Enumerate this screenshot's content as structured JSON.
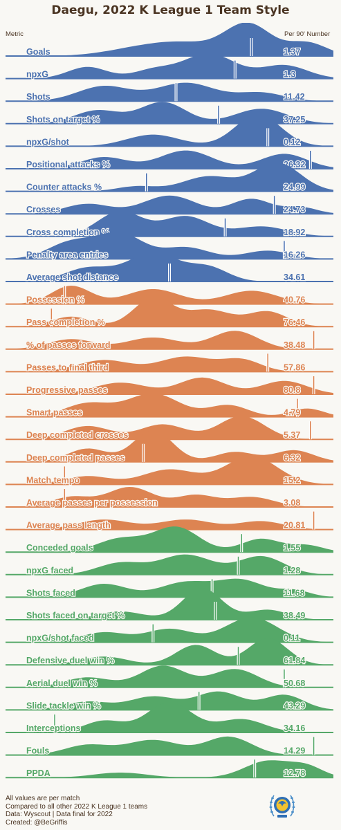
{
  "title": "Daegu, 2022 K League 1 Team Style",
  "header": {
    "left": "Metric",
    "right": "Per 90' Number"
  },
  "colors": {
    "attack": "#4c72b0",
    "possession": "#dd8452",
    "defense": "#55a868",
    "background": "#f9f8f4",
    "text": "#4a3422",
    "marker": "#ffffff"
  },
  "footer": {
    "lines": [
      "All values are per match",
      "Compared to all other 2022 K League 1 teams",
      "Data: Wyscout | Data final for 2022",
      "Created: @BeGriffis"
    ]
  },
  "logo": "daegu-fc-crest-icon",
  "chart_data": {
    "type": "ridgeline",
    "note_axis": "each row shows the distribution of the metric across league teams; marker shows Daegu's value",
    "groups": [
      "attack",
      "possession",
      "defense"
    ],
    "rows": [
      {
        "metric": "Goals",
        "value": "1.37",
        "group": "attack",
        "marker": 0.75,
        "peaks": [
          [
            0.4,
            0.2,
            0.1
          ],
          [
            0.55,
            0.35,
            0.1
          ],
          [
            0.74,
            0.95,
            0.07
          ],
          [
            0.92,
            0.4,
            0.06
          ]
        ]
      },
      {
        "metric": "npxG",
        "value": "1.3",
        "group": "attack",
        "marker": 0.7,
        "peaks": [
          [
            0.25,
            0.35,
            0.06
          ],
          [
            0.45,
            0.25,
            0.06
          ],
          [
            0.62,
            0.75,
            0.08
          ],
          [
            0.85,
            0.4,
            0.07
          ]
        ]
      },
      {
        "metric": "Shots",
        "value": "11.42",
        "group": "attack",
        "marker": 0.52,
        "peaks": [
          [
            0.3,
            0.45,
            0.08
          ],
          [
            0.55,
            0.55,
            0.09
          ],
          [
            0.78,
            0.25,
            0.07
          ]
        ]
      },
      {
        "metric": "Shots on target %",
        "value": "37.25",
        "group": "attack",
        "marker": 0.65,
        "peaks": [
          [
            0.28,
            0.4,
            0.07
          ],
          [
            0.48,
            0.65,
            0.07
          ],
          [
            0.78,
            0.45,
            0.08
          ]
        ]
      },
      {
        "metric": "npxG/shot",
        "value": "0.12",
        "group": "attack",
        "marker": 0.8,
        "peaks": [
          [
            0.45,
            0.35,
            0.08
          ],
          [
            0.77,
            0.95,
            0.07
          ]
        ]
      },
      {
        "metric": "Positional attacks %",
        "value": "26.32",
        "group": "attack",
        "marker": 0.93,
        "peaks": [
          [
            0.3,
            0.35,
            0.07
          ],
          [
            0.55,
            0.55,
            0.08
          ],
          [
            0.85,
            0.45,
            0.07
          ]
        ]
      },
      {
        "metric": "Counter attacks %",
        "value": "24.99",
        "group": "attack",
        "marker": 0.43,
        "peaks": [
          [
            0.4,
            0.15,
            0.06
          ],
          [
            0.62,
            0.45,
            0.08
          ],
          [
            0.83,
            0.85,
            0.07
          ]
        ]
      },
      {
        "metric": "Crosses",
        "value": "24.73",
        "group": "attack",
        "marker": 0.82,
        "peaks": [
          [
            0.25,
            0.3,
            0.07
          ],
          [
            0.5,
            0.55,
            0.08
          ],
          [
            0.75,
            0.45,
            0.06
          ],
          [
            0.9,
            0.2,
            0.05
          ]
        ]
      },
      {
        "metric": "Cross completion %",
        "value": "18.92",
        "group": "attack",
        "marker": 0.67,
        "peaks": [
          [
            0.35,
            0.75,
            0.07
          ],
          [
            0.55,
            0.6,
            0.07
          ],
          [
            0.78,
            0.3,
            0.08
          ]
        ]
      },
      {
        "metric": "Penalty area entries",
        "value": "16.26",
        "group": "attack",
        "marker": 0.85,
        "peaks": [
          [
            0.2,
            0.5,
            0.07
          ],
          [
            0.35,
            0.75,
            0.07
          ],
          [
            0.55,
            0.35,
            0.07
          ],
          [
            0.8,
            0.25,
            0.07
          ]
        ]
      },
      {
        "metric": "Average shot distance",
        "value": "34.61",
        "group": "attack",
        "marker": 0.5,
        "peaks": [
          [
            0.25,
            0.4,
            0.07
          ],
          [
            0.45,
            0.85,
            0.08
          ],
          [
            0.62,
            0.4,
            0.06
          ]
        ]
      },
      {
        "metric": "Possession %",
        "value": "40.76",
        "group": "possession",
        "marker": 0.18,
        "peaks": [
          [
            0.2,
            0.55,
            0.06
          ],
          [
            0.45,
            0.45,
            0.08
          ],
          [
            0.75,
            0.4,
            0.08
          ]
        ]
      },
      {
        "metric": "Pass completion %",
        "value": "76.46",
        "group": "possession",
        "marker": 0.14,
        "peaks": [
          [
            0.2,
            0.3,
            0.06
          ],
          [
            0.45,
            0.85,
            0.06
          ],
          [
            0.62,
            0.5,
            0.07
          ],
          [
            0.8,
            0.45,
            0.06
          ]
        ]
      },
      {
        "metric": "% of passes forward",
        "value": "38.48",
        "group": "possession",
        "marker": 0.94,
        "peaks": [
          [
            0.2,
            0.3,
            0.07
          ],
          [
            0.45,
            0.35,
            0.08
          ],
          [
            0.7,
            0.55,
            0.07
          ]
        ]
      },
      {
        "metric": "Passes to final third",
        "value": "57.86",
        "group": "possession",
        "marker": 0.8,
        "peaks": [
          [
            0.3,
            0.35,
            0.08
          ],
          [
            0.55,
            0.45,
            0.08
          ],
          [
            0.72,
            0.35,
            0.06
          ]
        ]
      },
      {
        "metric": "Progressive passes",
        "value": "80.8",
        "group": "possession",
        "marker": 0.94,
        "peaks": [
          [
            0.35,
            0.35,
            0.08
          ],
          [
            0.6,
            0.5,
            0.07
          ],
          [
            0.85,
            0.4,
            0.07
          ]
        ]
      },
      {
        "metric": "Smart passes",
        "value": "4.79",
        "group": "possession",
        "marker": 0.89,
        "peaks": [
          [
            0.25,
            0.4,
            0.07
          ],
          [
            0.45,
            0.7,
            0.08
          ],
          [
            0.68,
            0.35,
            0.06
          ],
          [
            0.92,
            0.25,
            0.05
          ]
        ]
      },
      {
        "metric": "Deep completed crosses",
        "value": "5.37",
        "group": "possession",
        "marker": 0.93,
        "peaks": [
          [
            0.25,
            0.4,
            0.07
          ],
          [
            0.48,
            0.45,
            0.07
          ],
          [
            0.72,
            0.7,
            0.07
          ]
        ]
      },
      {
        "metric": "Deep completed passes",
        "value": "6.32",
        "group": "possession",
        "marker": 0.42,
        "peaks": [
          [
            0.25,
            0.4,
            0.06
          ],
          [
            0.45,
            0.95,
            0.06
          ],
          [
            0.7,
            0.3,
            0.06
          ],
          [
            0.88,
            0.35,
            0.06
          ]
        ]
      },
      {
        "metric": "Match tempo",
        "value": "15.2",
        "group": "possession",
        "marker": 0.18,
        "peaks": [
          [
            0.25,
            0.25,
            0.07
          ],
          [
            0.5,
            0.45,
            0.08
          ],
          [
            0.75,
            0.85,
            0.08
          ]
        ]
      },
      {
        "metric": "Average passes per possession",
        "value": "3.08",
        "group": "possession",
        "marker": 0.18,
        "peaks": [
          [
            0.2,
            0.3,
            0.06
          ],
          [
            0.38,
            0.6,
            0.07
          ],
          [
            0.58,
            0.35,
            0.06
          ],
          [
            0.75,
            0.3,
            0.07
          ]
        ]
      },
      {
        "metric": "Average pass length",
        "value": "20.81",
        "group": "possession",
        "marker": 0.94,
        "peaks": [
          [
            0.3,
            0.3,
            0.08
          ],
          [
            0.55,
            0.3,
            0.08
          ],
          [
            0.78,
            0.25,
            0.07
          ]
        ]
      },
      {
        "metric": "Conceded goals",
        "value": "1.55",
        "group": "defense",
        "marker": 0.72,
        "peaks": [
          [
            0.35,
            0.4,
            0.07
          ],
          [
            0.52,
            0.75,
            0.07
          ],
          [
            0.78,
            0.4,
            0.06
          ],
          [
            0.92,
            0.2,
            0.05
          ]
        ]
      },
      {
        "metric": "npxG faced",
        "value": "1.28",
        "group": "defense",
        "marker": 0.71,
        "peaks": [
          [
            0.35,
            0.35,
            0.07
          ],
          [
            0.55,
            0.6,
            0.08
          ],
          [
            0.78,
            0.55,
            0.07
          ]
        ]
      },
      {
        "metric": "Shots faced",
        "value": "11.68",
        "group": "defense",
        "marker": 0.63,
        "peaks": [
          [
            0.3,
            0.4,
            0.07
          ],
          [
            0.55,
            0.45,
            0.08
          ],
          [
            0.72,
            0.5,
            0.07
          ],
          [
            0.88,
            0.2,
            0.05
          ]
        ]
      },
      {
        "metric": "Shots faced on target %",
        "value": "38.49",
        "group": "defense",
        "marker": 0.64,
        "peaks": [
          [
            0.35,
            0.25,
            0.07
          ],
          [
            0.6,
            0.95,
            0.06
          ],
          [
            0.8,
            0.3,
            0.06
          ]
        ]
      },
      {
        "metric": "npxG/shot faced",
        "value": "0.11",
        "group": "defense",
        "marker": 0.45,
        "peaks": [
          [
            0.3,
            0.3,
            0.07
          ],
          [
            0.5,
            0.4,
            0.07
          ],
          [
            0.75,
            0.75,
            0.08
          ]
        ]
      },
      {
        "metric": "Defensive duel win %",
        "value": "61.84",
        "group": "defense",
        "marker": 0.71,
        "peaks": [
          [
            0.3,
            0.25,
            0.07
          ],
          [
            0.58,
            0.6,
            0.06
          ],
          [
            0.8,
            0.8,
            0.06
          ]
        ]
      },
      {
        "metric": "Aerial duel win %",
        "value": "50.68",
        "group": "defense",
        "marker": 0.85,
        "peaks": [
          [
            0.25,
            0.3,
            0.07
          ],
          [
            0.48,
            0.65,
            0.07
          ],
          [
            0.7,
            0.55,
            0.07
          ]
        ]
      },
      {
        "metric": "Slide tackle win %",
        "value": "43.29",
        "group": "defense",
        "marker": 0.59,
        "peaks": [
          [
            0.25,
            0.25,
            0.07
          ],
          [
            0.45,
            0.4,
            0.07
          ],
          [
            0.65,
            0.55,
            0.07
          ],
          [
            0.85,
            0.45,
            0.06
          ]
        ]
      },
      {
        "metric": "Interceptions",
        "value": "34.16",
        "group": "defense",
        "marker": 0.15,
        "peaks": [
          [
            0.3,
            0.35,
            0.06
          ],
          [
            0.5,
            0.9,
            0.07
          ],
          [
            0.72,
            0.4,
            0.07
          ]
        ]
      },
      {
        "metric": "Fouls",
        "value": "14.29",
        "group": "defense",
        "marker": 0.94,
        "peaks": [
          [
            0.25,
            0.3,
            0.07
          ],
          [
            0.45,
            0.45,
            0.08
          ],
          [
            0.68,
            0.55,
            0.07
          ]
        ]
      },
      {
        "metric": "PPDA",
        "value": "12.78",
        "group": "defense",
        "marker": 0.76,
        "peaks": [
          [
            0.35,
            0.15,
            0.08
          ],
          [
            0.8,
            0.5,
            0.07
          ],
          [
            0.92,
            0.3,
            0.05
          ]
        ]
      }
    ]
  }
}
